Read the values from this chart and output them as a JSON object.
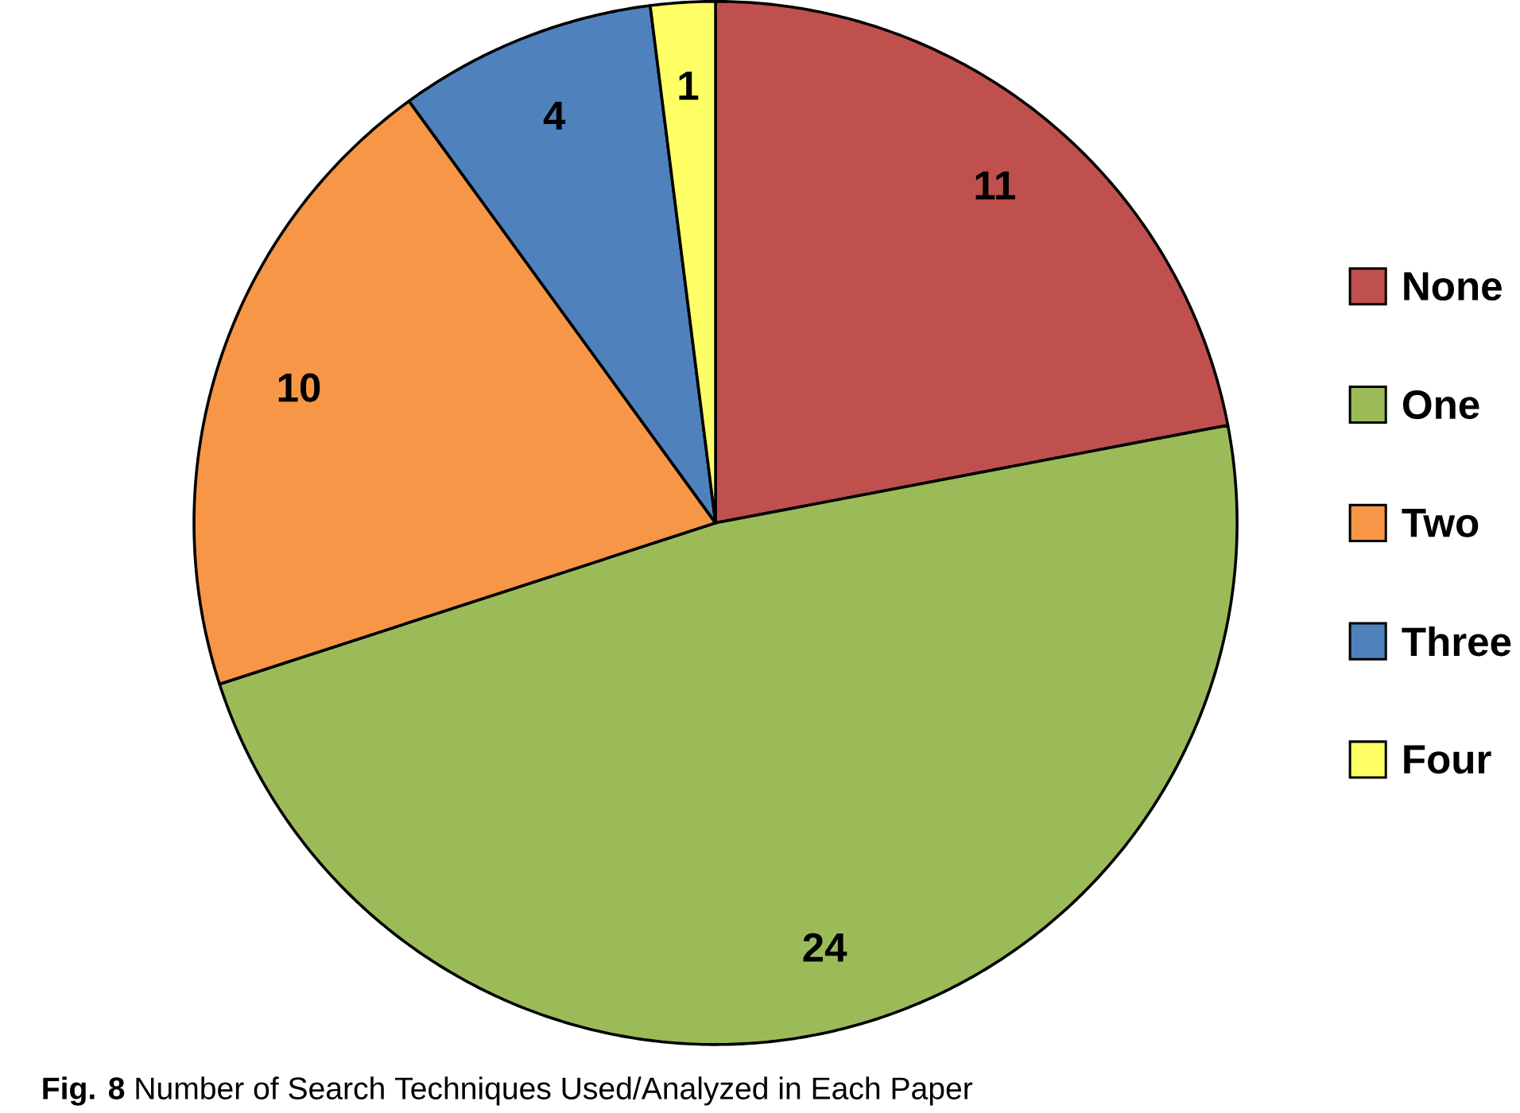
{
  "chart_data": {
    "type": "pie",
    "categories": [
      "None",
      "One",
      "Two",
      "Three",
      "Four"
    ],
    "values": [
      11,
      24,
      10,
      4,
      1
    ],
    "colors": [
      "#c0504d",
      "#9bbb59",
      "#f79646",
      "#4f81bd",
      "#ffff66"
    ],
    "data_labels": true,
    "legend": "right",
    "annotations": [
      "**Fig. 8** Number of Search Techniques Used/Analyzed in Each Paper"
    ]
  }
}
